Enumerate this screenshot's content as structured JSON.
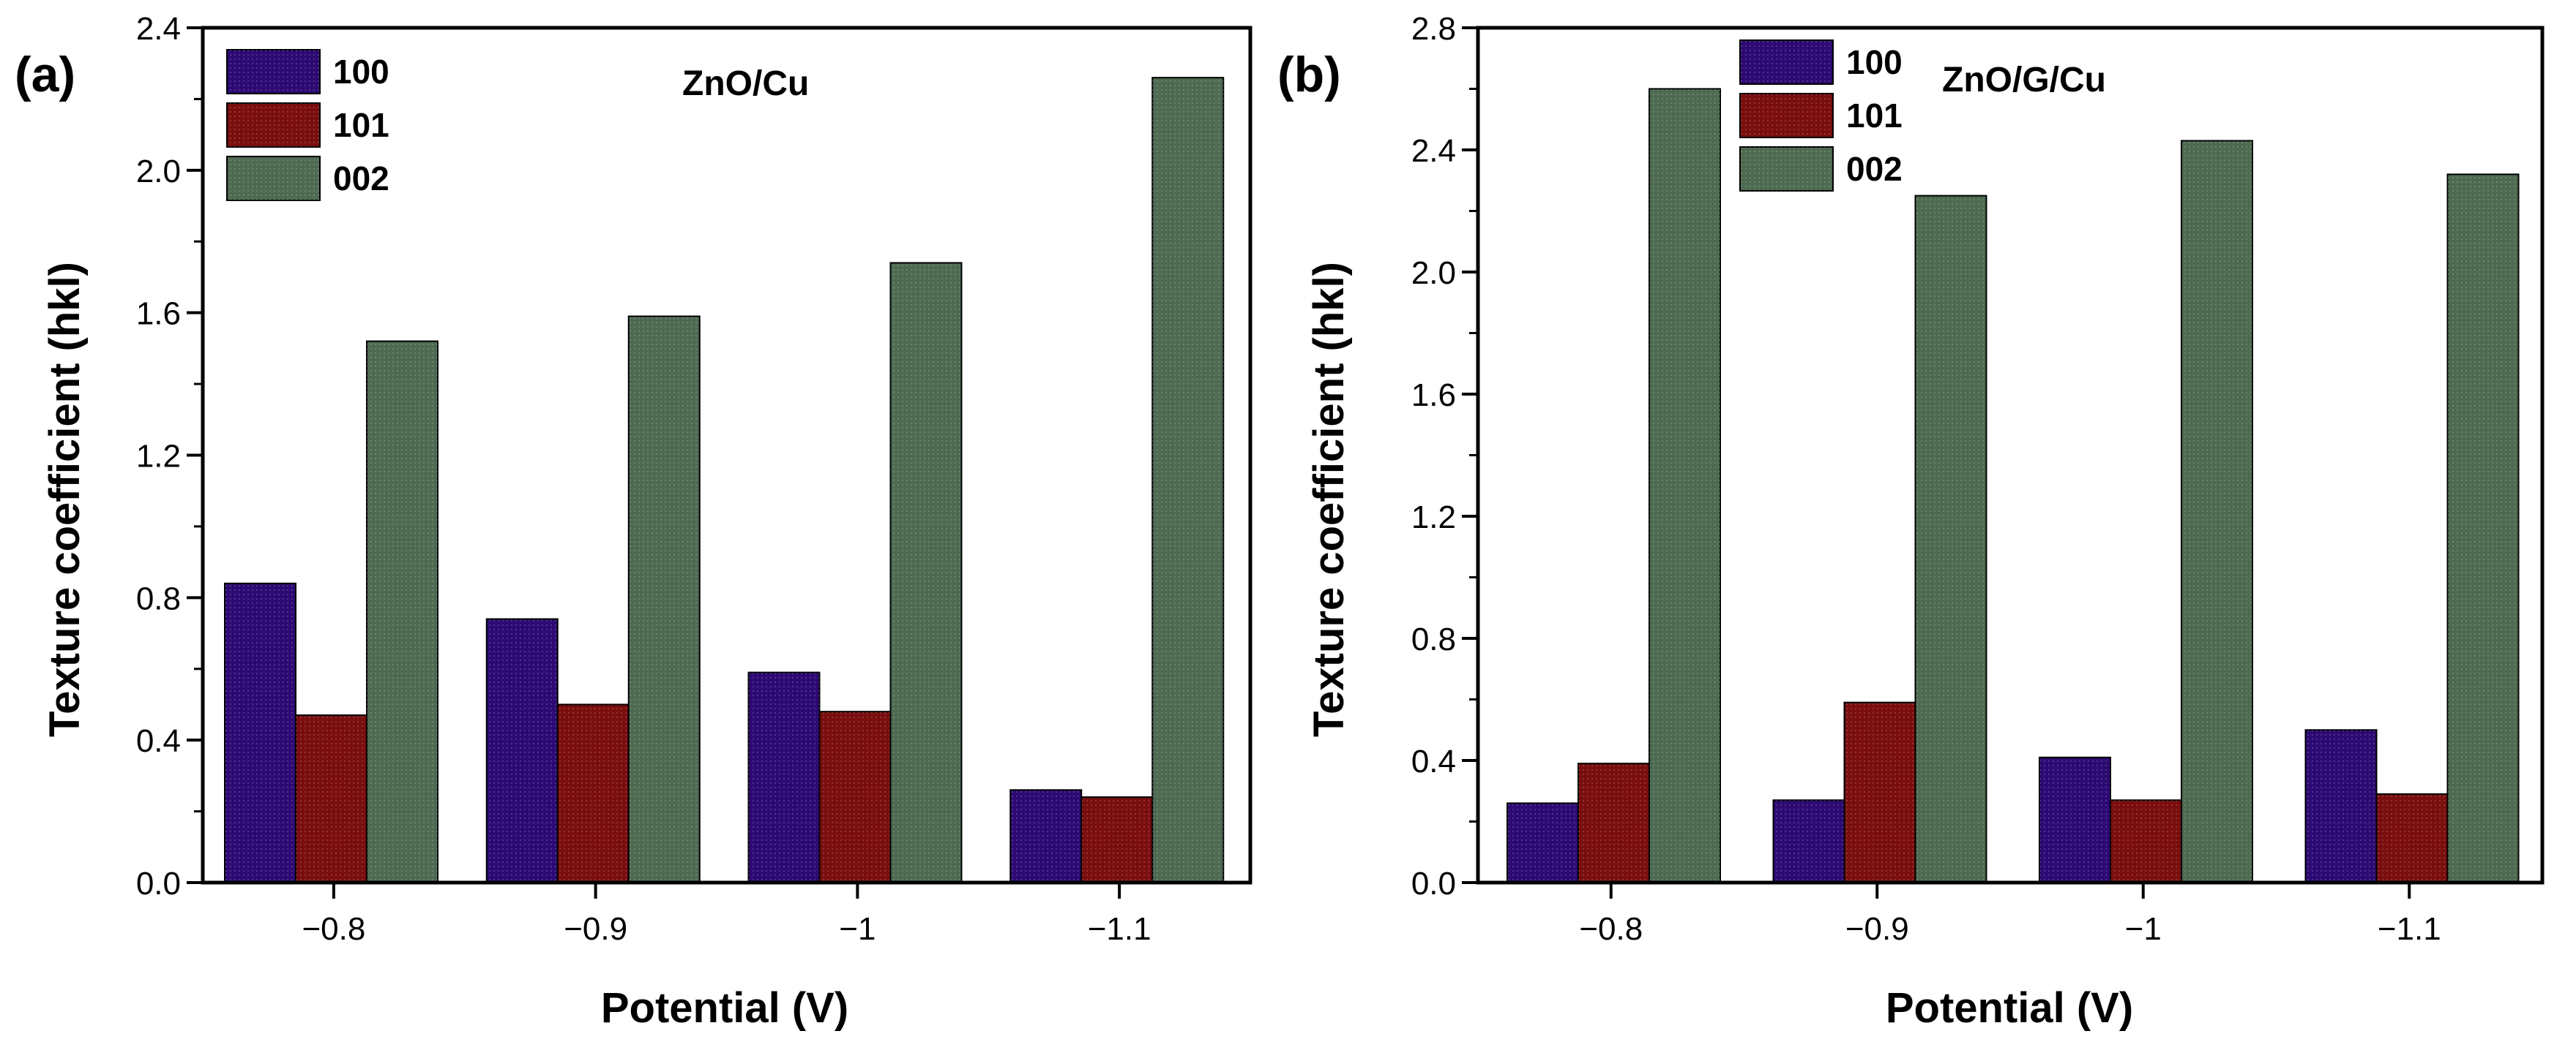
{
  "colors": {
    "100": "#2d0a73",
    "101": "#7a0e0e",
    "002": "#4e6b52"
  },
  "chart_data": [
    {
      "panel": "(a)",
      "type": "bar",
      "title": "ZnO/Cu",
      "xlabel": "Potential (V)",
      "ylabel": "Texture coefficient (hkl)",
      "categories": [
        "−0.8",
        "−0.9",
        "−1",
        "−1.1"
      ],
      "ylim": [
        0,
        2.4
      ],
      "yticks": [
        "0.0",
        "0.4",
        "0.8",
        "1.2",
        "1.6",
        "2.0",
        "2.4"
      ],
      "legend_position": "top-left",
      "series": [
        {
          "name": "100",
          "values": [
            0.84,
            0.74,
            0.59,
            0.26
          ]
        },
        {
          "name": "101",
          "values": [
            0.47,
            0.5,
            0.48,
            0.24
          ]
        },
        {
          "name": "002",
          "values": [
            1.52,
            1.59,
            1.74,
            2.26
          ]
        }
      ]
    },
    {
      "panel": "(b)",
      "type": "bar",
      "title": "ZnO/G/Cu",
      "xlabel": "Potential (V)",
      "ylabel": "Texture coefficient (hkl)",
      "categories": [
        "−0.8",
        "−0.9",
        "−1",
        "−1.1"
      ],
      "ylim": [
        0,
        2.8
      ],
      "yticks": [
        "0.0",
        "0.4",
        "0.8",
        "1.2",
        "1.6",
        "2.0",
        "2.4",
        "2.8"
      ],
      "legend_position": "top-left",
      "series": [
        {
          "name": "100",
          "values": [
            0.26,
            0.27,
            0.41,
            0.5
          ]
        },
        {
          "name": "101",
          "values": [
            0.39,
            0.59,
            0.27,
            0.29
          ]
        },
        {
          "name": "002",
          "values": [
            2.6,
            2.25,
            2.43,
            2.32
          ]
        }
      ]
    }
  ]
}
